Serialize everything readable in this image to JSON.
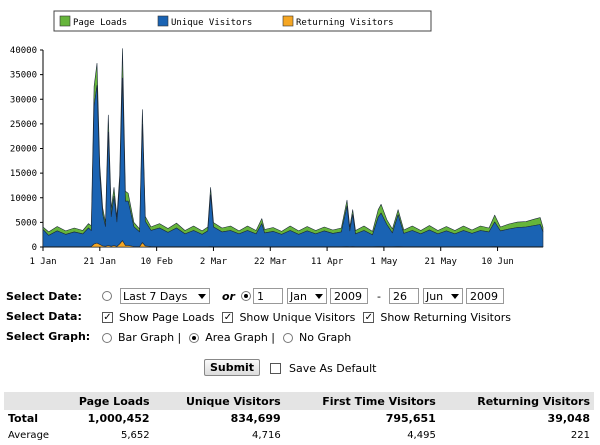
{
  "chart_data": {
    "type": "area",
    "stacked": true,
    "legend_position": "top",
    "series": [
      {
        "name": "Returning Visitors",
        "color": "#f5a623"
      },
      {
        "name": "Unique Visitors",
        "color": "#1a63b3"
      },
      {
        "name": "Page Loads",
        "color": "#66b53b"
      }
    ],
    "y_ticks": [
      "0",
      "5000",
      "10000",
      "15000",
      "20000",
      "25000",
      "30000",
      "35000",
      "40000"
    ],
    "ylim": [
      0,
      40000
    ],
    "x_ticks": [
      "1 Jan",
      "21 Jan",
      "10 Feb",
      "2 Mar",
      "22 Mar",
      "11 Apr",
      "1 May",
      "21 May",
      "10 Jun"
    ],
    "points": [
      {
        "x": "1 Jan",
        "pl": 500,
        "uv": 3500,
        "rv": 60
      },
      {
        "x": "3 Jan",
        "pl": 700,
        "uv": 2300,
        "rv": 60
      },
      {
        "x": "6 Jan",
        "pl": 900,
        "uv": 3200,
        "rv": 60
      },
      {
        "x": "9 Jan",
        "pl": 700,
        "uv": 2500,
        "rv": 60
      },
      {
        "x": "12 Jan",
        "pl": 800,
        "uv": 3000,
        "rv": 60
      },
      {
        "x": "15 Jan",
        "pl": 700,
        "uv": 2600,
        "rv": 60
      },
      {
        "x": "17 Jan",
        "pl": 900,
        "uv": 3800,
        "rv": 60
      },
      {
        "x": "18 Jan",
        "pl": 1000,
        "uv": 3200,
        "rv": 100
      },
      {
        "x": "19 Jan",
        "pl": 4000,
        "uv": 28000,
        "rv": 600
      },
      {
        "x": "20 Jan",
        "pl": 4500,
        "uv": 32000,
        "rv": 800
      },
      {
        "x": "21 Jan",
        "pl": 2000,
        "uv": 14000,
        "rv": 500
      },
      {
        "x": "22 Jan",
        "pl": 1200,
        "uv": 6500,
        "rv": 200
      },
      {
        "x": "23 Jan",
        "pl": 900,
        "uv": 4000,
        "rv": 150
      },
      {
        "x": "24 Jan",
        "pl": 3500,
        "uv": 23000,
        "rv": 300
      },
      {
        "x": "25 Jan",
        "pl": 1500,
        "uv": 6000,
        "rv": 150
      },
      {
        "x": "26 Jan",
        "pl": 1800,
        "uv": 10000,
        "rv": 300
      },
      {
        "x": "27 Jan",
        "pl": 1000,
        "uv": 5000,
        "rv": 100
      },
      {
        "x": "28 Jan",
        "pl": 2000,
        "uv": 12000,
        "rv": 600
      },
      {
        "x": "29 Jan",
        "pl": 6000,
        "uv": 33000,
        "rv": 1300
      },
      {
        "x": "30 Jan",
        "pl": 2000,
        "uv": 9000,
        "rv": 300
      },
      {
        "x": "31 Jan",
        "pl": 1600,
        "uv": 9000,
        "rv": 300
      },
      {
        "x": "2 Feb",
        "pl": 900,
        "uv": 4000,
        "rv": 100
      },
      {
        "x": "4 Feb",
        "pl": 600,
        "uv": 3000,
        "rv": 60
      },
      {
        "x": "5 Feb",
        "pl": 3000,
        "uv": 24000,
        "rv": 900
      },
      {
        "x": "6 Feb",
        "pl": 1000,
        "uv": 5000,
        "rv": 200
      },
      {
        "x": "8 Feb",
        "pl": 700,
        "uv": 3300,
        "rv": 80
      },
      {
        "x": "11 Feb",
        "pl": 900,
        "uv": 3800,
        "rv": 60
      },
      {
        "x": "14 Feb",
        "pl": 800,
        "uv": 2900,
        "rv": 60
      },
      {
        "x": "17 Feb",
        "pl": 1000,
        "uv": 3800,
        "rv": 60
      },
      {
        "x": "20 Feb",
        "pl": 700,
        "uv": 2600,
        "rv": 60
      },
      {
        "x": "23 Feb",
        "pl": 900,
        "uv": 3300,
        "rv": 60
      },
      {
        "x": "26 Feb",
        "pl": 700,
        "uv": 2500,
        "rv": 60
      },
      {
        "x": "28 Feb",
        "pl": 800,
        "uv": 3200,
        "rv": 60
      },
      {
        "x": "1 Mar",
        "pl": 1500,
        "uv": 10500,
        "rv": 100
      },
      {
        "x": "2 Mar",
        "pl": 900,
        "uv": 4000,
        "rv": 60
      },
      {
        "x": "5 Mar",
        "pl": 800,
        "uv": 3000,
        "rv": 60
      },
      {
        "x": "8 Mar",
        "pl": 900,
        "uv": 3300,
        "rv": 60
      },
      {
        "x": "11 Mar",
        "pl": 600,
        "uv": 2600,
        "rv": 60
      },
      {
        "x": "14 Mar",
        "pl": 900,
        "uv": 3300,
        "rv": 60
      },
      {
        "x": "17 Mar",
        "pl": 700,
        "uv": 2600,
        "rv": 60
      },
      {
        "x": "19 Mar",
        "pl": 1000,
        "uv": 4700,
        "rv": 60
      },
      {
        "x": "20 Mar",
        "pl": 700,
        "uv": 2800,
        "rv": 60
      },
      {
        "x": "23 Mar",
        "pl": 800,
        "uv": 3100,
        "rv": 60
      },
      {
        "x": "26 Mar",
        "pl": 600,
        "uv": 2500,
        "rv": 60
      },
      {
        "x": "29 Mar",
        "pl": 900,
        "uv": 3300,
        "rv": 60
      },
      {
        "x": "1 Apr",
        "pl": 700,
        "uv": 2500,
        "rv": 60
      },
      {
        "x": "4 Apr",
        "pl": 900,
        "uv": 3200,
        "rv": 60
      },
      {
        "x": "7 Apr",
        "pl": 700,
        "uv": 2600,
        "rv": 60
      },
      {
        "x": "10 Apr",
        "pl": 800,
        "uv": 3200,
        "rv": 60
      },
      {
        "x": "13 Apr",
        "pl": 700,
        "uv": 2700,
        "rv": 60
      },
      {
        "x": "16 Apr",
        "pl": 800,
        "uv": 3000,
        "rv": 60
      },
      {
        "x": "18 Apr",
        "pl": 1200,
        "uv": 8200,
        "rv": 100
      },
      {
        "x": "19 Apr",
        "pl": 800,
        "uv": 3200,
        "rv": 60
      },
      {
        "x": "20 Apr",
        "pl": 1000,
        "uv": 6500,
        "rv": 80
      },
      {
        "x": "21 Apr",
        "pl": 700,
        "uv": 2600,
        "rv": 60
      },
      {
        "x": "24 Apr",
        "pl": 900,
        "uv": 3300,
        "rv": 60
      },
      {
        "x": "27 Apr",
        "pl": 700,
        "uv": 2400,
        "rv": 60
      },
      {
        "x": "29 Apr",
        "pl": 1500,
        "uv": 6000,
        "rv": 80
      },
      {
        "x": "30 Apr",
        "pl": 1800,
        "uv": 6800,
        "rv": 80
      },
      {
        "x": "2 May",
        "pl": 1000,
        "uv": 4500,
        "rv": 60
      },
      {
        "x": "4 May",
        "pl": 800,
        "uv": 2800,
        "rv": 60
      },
      {
        "x": "6 May",
        "pl": 1000,
        "uv": 6500,
        "rv": 80
      },
      {
        "x": "8 May",
        "pl": 700,
        "uv": 2700,
        "rv": 60
      },
      {
        "x": "11 May",
        "pl": 900,
        "uv": 3300,
        "rv": 60
      },
      {
        "x": "14 May",
        "pl": 700,
        "uv": 2600,
        "rv": 60
      },
      {
        "x": "17 May",
        "pl": 900,
        "uv": 3400,
        "rv": 60
      },
      {
        "x": "20 May",
        "pl": 700,
        "uv": 2600,
        "rv": 60
      },
      {
        "x": "23 May",
        "pl": 900,
        "uv": 3200,
        "rv": 60
      },
      {
        "x": "26 May",
        "pl": 700,
        "uv": 2600,
        "rv": 60
      },
      {
        "x": "29 May",
        "pl": 900,
        "uv": 3300,
        "rv": 60
      },
      {
        "x": "1 Jun",
        "pl": 700,
        "uv": 2700,
        "rv": 60
      },
      {
        "x": "4 Jun",
        "pl": 900,
        "uv": 3300,
        "rv": 60
      },
      {
        "x": "7 Jun",
        "pl": 800,
        "uv": 3000,
        "rv": 60
      },
      {
        "x": "9 Jun",
        "pl": 1400,
        "uv": 5000,
        "rv": 80
      },
      {
        "x": "11 Jun",
        "pl": 800,
        "uv": 3200,
        "rv": 60
      },
      {
        "x": "14 Jun",
        "pl": 1000,
        "uv": 3600,
        "rv": 60
      },
      {
        "x": "17 Jun",
        "pl": 1100,
        "uv": 3900,
        "rv": 60
      },
      {
        "x": "20 Jun",
        "pl": 1100,
        "uv": 4000,
        "rv": 60
      },
      {
        "x": "23 Jun",
        "pl": 1300,
        "uv": 4300,
        "rv": 60
      },
      {
        "x": "25 Jun",
        "pl": 1400,
        "uv": 4500,
        "rv": 60
      },
      {
        "x": "26 Jun",
        "pl": 900,
        "uv": 3000,
        "rv": 60
      }
    ]
  },
  "legend": {
    "page_loads": "Page Loads",
    "unique_visitors": "Unique Visitors",
    "returning_visitors": "Returning Visitors"
  },
  "form": {
    "select_date_label": "Select Date:",
    "preset_value": "Last 7 Days",
    "or_text": "or",
    "from_day": "1",
    "from_month": "Jan",
    "from_year": "2009",
    "dash": "-",
    "to_day": "26",
    "to_month": "Jun",
    "to_year": "2009",
    "select_data_label": "Select Data:",
    "show_page_loads": "Show Page Loads",
    "show_unique_visitors": "Show Unique Visitors",
    "show_returning_visitors": "Show Returning Visitors",
    "select_graph_label": "Select Graph:",
    "bar_graph": "Bar Graph |",
    "area_graph": "Area Graph |",
    "no_graph": "No Graph",
    "submit": "Submit",
    "save_as_default": "Save As Default",
    "checkmark": "✓"
  },
  "summary": {
    "headers": [
      "",
      "Page Loads",
      "Unique Visitors",
      "First Time Visitors",
      "Returning Visitors"
    ],
    "total": [
      "Total",
      "1,000,452",
      "834,699",
      "795,651",
      "39,048"
    ],
    "average": [
      "Average",
      "5,652",
      "4,716",
      "4,495",
      "221"
    ]
  }
}
